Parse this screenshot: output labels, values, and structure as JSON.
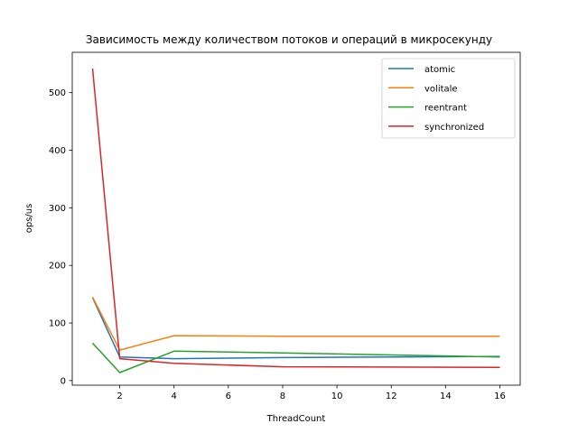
{
  "chart_data": {
    "type": "line",
    "title": "Зависимость между количеством потоков и операций в микросекунду",
    "xlabel": "ThreadCount",
    "ylabel": "ops/us",
    "x": [
      1,
      2,
      4,
      8,
      16
    ],
    "xlim": [
      0.25,
      16.75
    ],
    "ylim": [
      -8,
      570
    ],
    "xticks": [
      2,
      4,
      6,
      8,
      10,
      12,
      14,
      16
    ],
    "yticks": [
      0,
      100,
      200,
      300,
      400,
      500
    ],
    "grid": false,
    "legend_position": "top-right",
    "series": [
      {
        "name": "atomic",
        "color": "#1f77b4",
        "values": [
          144,
          41,
          38,
          40,
          42
        ]
      },
      {
        "name": "volitale",
        "color": "#ff7f0e",
        "values": [
          145,
          53,
          78,
          77,
          77
        ]
      },
      {
        "name": "reentrant",
        "color": "#2ca02c",
        "values": [
          65,
          14,
          51,
          48,
          41
        ]
      },
      {
        "name": "synchronized",
        "color": "#d62728",
        "values": [
          542,
          38,
          30,
          24,
          23
        ]
      }
    ]
  }
}
